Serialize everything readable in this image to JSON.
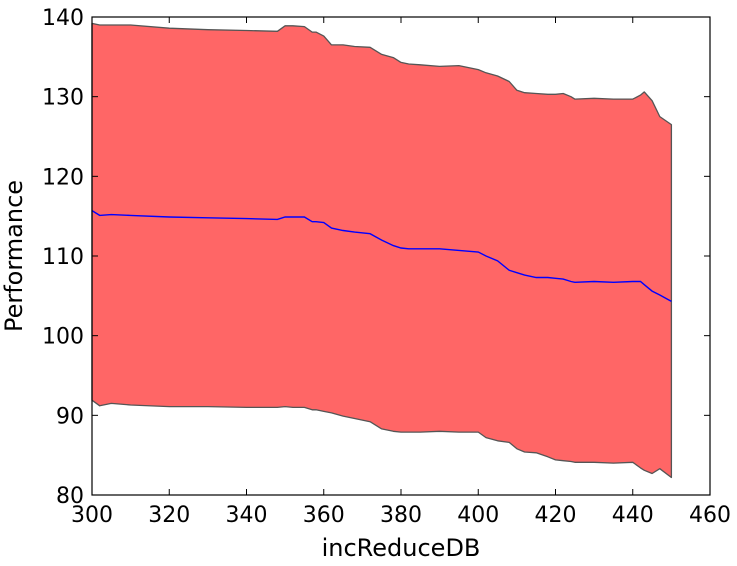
{
  "chart_data": {
    "type": "area",
    "xlabel": "incReduceDB",
    "ylabel": "Performance",
    "xlim": [
      300,
      460
    ],
    "ylim": [
      80,
      140
    ],
    "xticks": [
      300,
      320,
      340,
      360,
      380,
      400,
      420,
      440,
      460
    ],
    "yticks": [
      80,
      90,
      100,
      110,
      120,
      130,
      140
    ],
    "grid": false,
    "colors": {
      "band": "#ff6666",
      "band_edge": "#555555",
      "mean_line": "#0000ff"
    },
    "x": [
      300,
      302,
      305,
      310,
      320,
      330,
      340,
      348,
      350,
      352,
      355,
      357,
      358,
      360,
      362,
      365,
      368,
      372,
      375,
      378,
      380,
      382,
      385,
      390,
      395,
      400,
      402,
      405,
      408,
      410,
      412,
      415,
      418,
      420,
      422,
      424,
      425,
      430,
      435,
      440,
      442,
      443,
      445,
      447,
      450
    ],
    "upper": [
      139.2,
      139.0,
      139.0,
      139.0,
      138.6,
      138.4,
      138.3,
      138.2,
      138.9,
      138.9,
      138.8,
      138.1,
      138.1,
      137.6,
      136.5,
      136.5,
      136.3,
      136.2,
      135.3,
      134.9,
      134.3,
      134.1,
      134.0,
      133.8,
      133.9,
      133.4,
      133.0,
      132.6,
      131.9,
      130.8,
      130.5,
      130.4,
      130.3,
      130.3,
      130.4,
      130.0,
      129.7,
      129.8,
      129.7,
      129.7,
      130.2,
      130.6,
      129.5,
      127.5,
      126.5
    ],
    "mean": [
      115.7,
      115.1,
      115.2,
      115.1,
      114.9,
      114.8,
      114.7,
      114.6,
      114.9,
      114.9,
      114.9,
      114.3,
      114.3,
      114.2,
      113.5,
      113.2,
      113.0,
      112.8,
      112.0,
      111.3,
      111.0,
      110.9,
      110.9,
      110.9,
      110.7,
      110.5,
      110.0,
      109.4,
      108.2,
      107.9,
      107.6,
      107.3,
      107.3,
      107.2,
      107.1,
      106.8,
      106.7,
      106.8,
      106.7,
      106.8,
      106.8,
      106.4,
      105.6,
      105.1,
      104.3
    ],
    "lower": [
      91.9,
      91.2,
      91.5,
      91.3,
      91.1,
      91.1,
      91.0,
      91.0,
      91.1,
      91.0,
      91.0,
      90.7,
      90.7,
      90.5,
      90.3,
      89.9,
      89.6,
      89.2,
      88.3,
      88.0,
      87.9,
      87.9,
      87.9,
      88.0,
      87.9,
      87.9,
      87.2,
      86.8,
      86.6,
      85.8,
      85.4,
      85.3,
      84.8,
      84.4,
      84.3,
      84.2,
      84.1,
      84.1,
      84.0,
      84.1,
      83.4,
      83.1,
      82.7,
      83.3,
      82.2
    ]
  }
}
